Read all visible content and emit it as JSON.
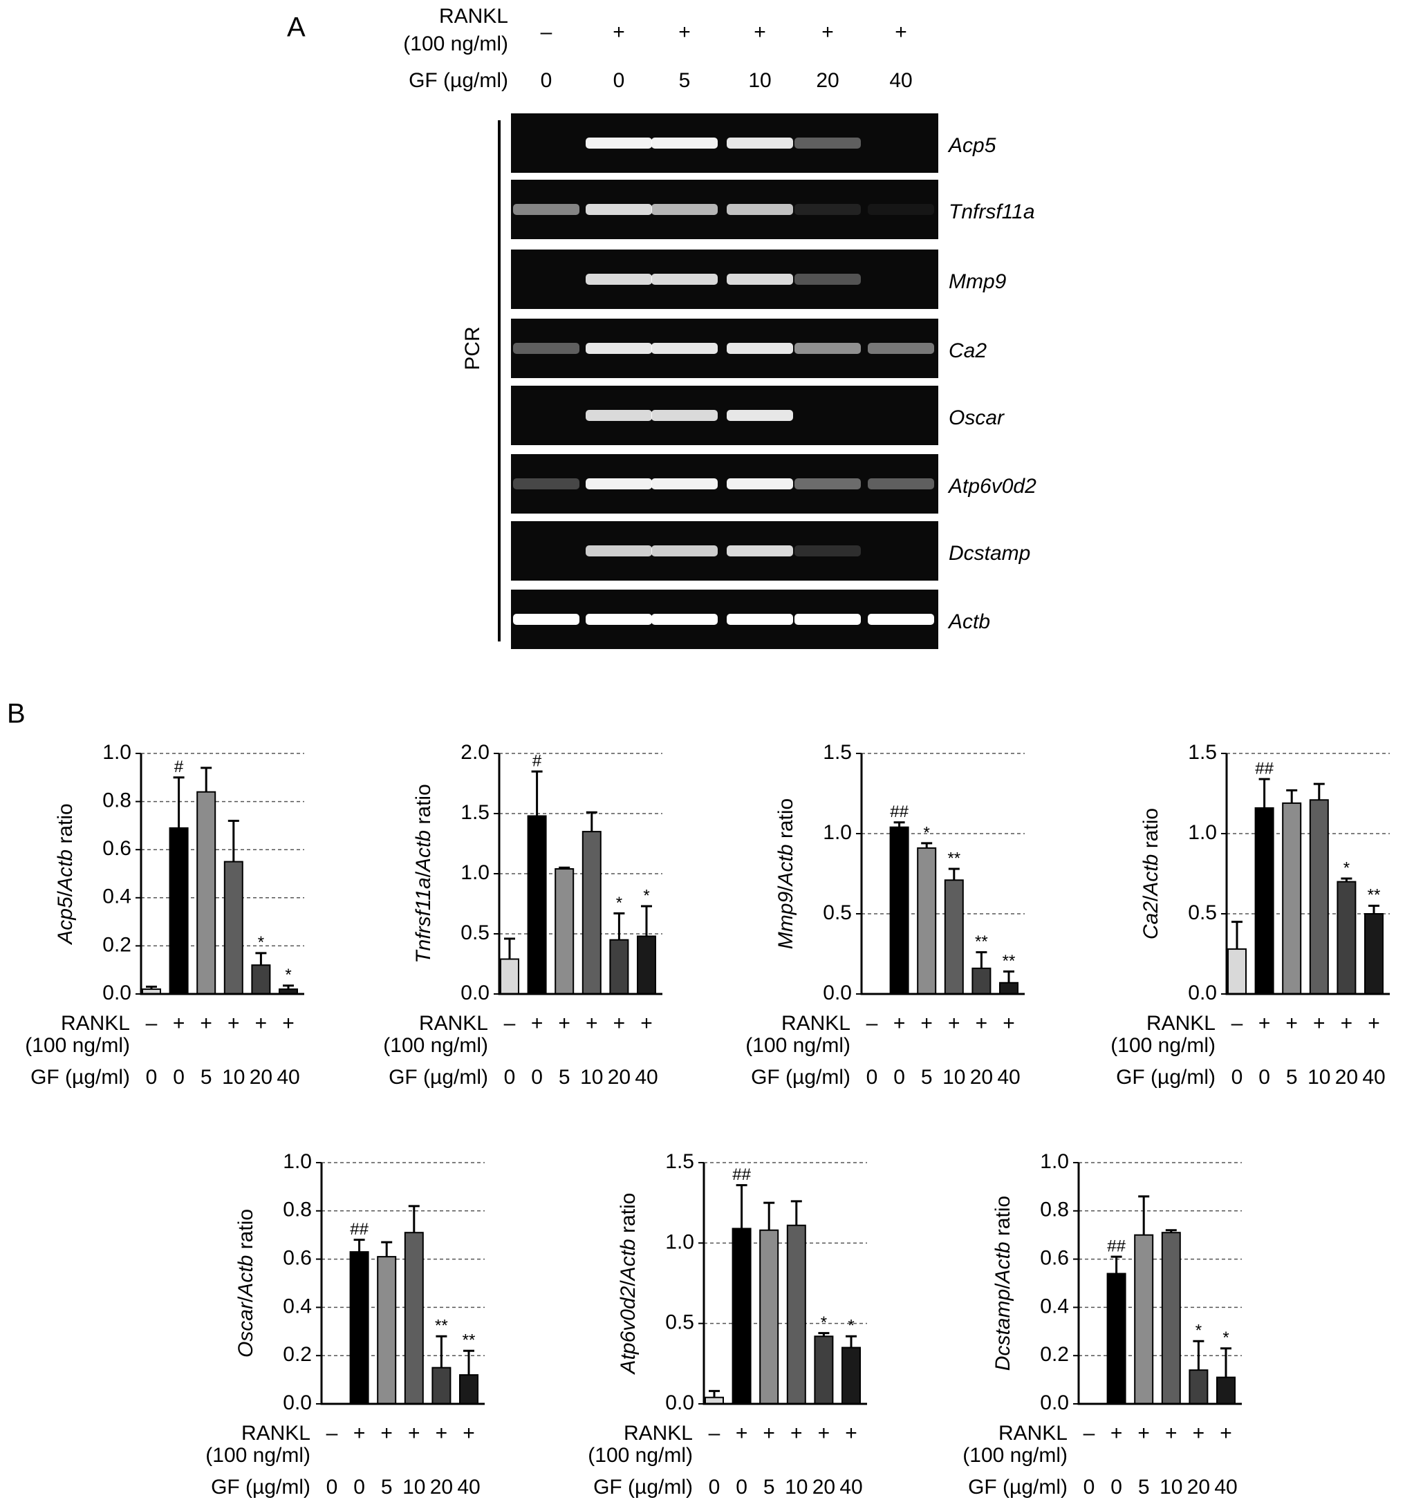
{
  "panel_a": {
    "label": "A",
    "rankl_label": "RANKL",
    "rankl_unit": "(100 ng/ml)",
    "rankl": [
      "–",
      "+",
      "+",
      "+",
      "+",
      "+"
    ],
    "gf_label": "GF (µg/ml)",
    "gf": [
      "0",
      "0",
      "5",
      "10",
      "20",
      "40"
    ],
    "method": "PCR",
    "genes": [
      "Acp5",
      "Tnfrsf11a",
      "Mmp9",
      "Ca2",
      "Oscar",
      "Atp6v0d2",
      "Dcstamp",
      "Actb"
    ]
  },
  "panel_b": {
    "label": "B"
  },
  "chart_data": [
    {
      "type": "bar",
      "ylabel": [
        {
          "text": "Acp5",
          "italic": true
        },
        {
          "text": "/",
          "italic": false
        },
        {
          "text": "Actb",
          "italic": true
        },
        {
          "text": " ratio",
          "italic": false
        }
      ],
      "row_labels": [
        "RANKL",
        "(100 ng/ml)",
        "GF (µg/ml)"
      ],
      "rankl": [
        "–",
        "+",
        "+",
        "+",
        "+",
        "+"
      ],
      "categories": [
        "0",
        "0",
        "5",
        "10",
        "20",
        "40"
      ],
      "values": [
        0.02,
        0.69,
        0.84,
        0.55,
        0.12,
        0.02
      ],
      "errors": [
        0.01,
        0.21,
        0.1,
        0.17,
        0.05,
        0.015
      ],
      "annotations": [
        null,
        "#",
        null,
        null,
        "*",
        "*"
      ],
      "colors": [
        "#d9d9d9",
        "#000000",
        "#8c8c8c",
        "#5e5e5e",
        "#404040",
        "#1a1a1a"
      ],
      "ylim": [
        0,
        1
      ],
      "yticks": [
        {
          "value": 0,
          "label": "0.0"
        },
        0.2,
        0.4,
        0.6,
        0.8,
        {
          "value": 1,
          "label": "1.0"
        }
      ],
      "grid": true
    },
    {
      "type": "bar",
      "ylabel": [
        {
          "text": "Tnfrsf11a",
          "italic": true
        },
        {
          "text": "/",
          "italic": false
        },
        {
          "text": "Actb",
          "italic": true
        },
        {
          "text": " ratio",
          "italic": false
        }
      ],
      "row_labels": [
        "RANKL",
        "(100 ng/ml)",
        "GF (µg/ml)"
      ],
      "rankl": [
        "–",
        "+",
        "+",
        "+",
        "+",
        "+"
      ],
      "categories": [
        "0",
        "0",
        "5",
        "10",
        "20",
        "40"
      ],
      "values": [
        0.29,
        1.48,
        1.04,
        1.35,
        0.45,
        0.48
      ],
      "errors": [
        0.17,
        0.37,
        0.01,
        0.16,
        0.22,
        0.25
      ],
      "annotations": [
        null,
        "#",
        null,
        null,
        "*",
        "*"
      ],
      "colors": [
        "#d9d9d9",
        "#000000",
        "#8c8c8c",
        "#5e5e5e",
        "#404040",
        "#1a1a1a"
      ],
      "ylim": [
        0,
        2
      ],
      "yticks": [
        {
          "value": 0,
          "label": "0.0"
        },
        0.5,
        {
          "value": 1,
          "label": "1.0"
        },
        1.5,
        {
          "value": 2,
          "label": "2.0"
        }
      ],
      "grid": true
    },
    {
      "type": "bar",
      "ylabel": [
        {
          "text": "Mmp9",
          "italic": true
        },
        {
          "text": "/",
          "italic": false
        },
        {
          "text": "Actb",
          "italic": true
        },
        {
          "text": " ratio",
          "italic": false
        }
      ],
      "row_labels": [
        "RANKL",
        "(100 ng/ml)",
        "GF (µg/ml)"
      ],
      "rankl": [
        "–",
        "+",
        "+",
        "+",
        "+",
        "+"
      ],
      "categories": [
        "0",
        "0",
        "5",
        "10",
        "20",
        "40"
      ],
      "values": [
        0,
        1.04,
        0.91,
        0.71,
        0.16,
        0.07
      ],
      "errors": [
        0,
        0.03,
        0.03,
        0.07,
        0.1,
        0.07
      ],
      "annotations": [
        null,
        "##",
        "*",
        "**",
        "**",
        "**"
      ],
      "colors": [
        "#d9d9d9",
        "#000000",
        "#8c8c8c",
        "#5e5e5e",
        "#404040",
        "#1a1a1a"
      ],
      "ylim": [
        0,
        1.5
      ],
      "yticks": [
        {
          "value": 0,
          "label": "0.0"
        },
        0.5,
        {
          "value": 1,
          "label": "1.0"
        },
        1.5
      ],
      "grid": true
    },
    {
      "type": "bar",
      "ylabel": [
        {
          "text": "Ca2",
          "italic": true
        },
        {
          "text": "/",
          "italic": false
        },
        {
          "text": "Actb",
          "italic": true
        },
        {
          "text": " ratio",
          "italic": false
        }
      ],
      "row_labels": [
        "RANKL",
        "(100 ng/ml)",
        "GF (µg/ml)"
      ],
      "rankl": [
        "–",
        "+",
        "+",
        "+",
        "+",
        "+"
      ],
      "categories": [
        "0",
        "0",
        "5",
        "10",
        "20",
        "40"
      ],
      "values": [
        0.28,
        1.16,
        1.19,
        1.21,
        0.7,
        0.5
      ],
      "errors": [
        0.17,
        0.18,
        0.08,
        0.1,
        0.02,
        0.05
      ],
      "annotations": [
        null,
        "##",
        null,
        null,
        "*",
        "**"
      ],
      "colors": [
        "#d9d9d9",
        "#000000",
        "#8c8c8c",
        "#5e5e5e",
        "#404040",
        "#1a1a1a"
      ],
      "ylim": [
        0,
        1.5
      ],
      "yticks": [
        {
          "value": 0,
          "label": "0.0"
        },
        0.5,
        {
          "value": 1,
          "label": "1.0"
        },
        1.5
      ],
      "grid": true
    },
    {
      "type": "bar",
      "ylabel": [
        {
          "text": "Oscar",
          "italic": true
        },
        {
          "text": "/",
          "italic": false
        },
        {
          "text": "Actb",
          "italic": true
        },
        {
          "text": " ratio",
          "italic": false
        }
      ],
      "row_labels": [
        "RANKL",
        "(100 ng/ml)",
        "GF (µg/ml)"
      ],
      "rankl": [
        "–",
        "+",
        "+",
        "+",
        "+",
        "+"
      ],
      "categories": [
        "0",
        "0",
        "5",
        "10",
        "20",
        "40"
      ],
      "values": [
        0,
        0.63,
        0.61,
        0.71,
        0.15,
        0.12
      ],
      "errors": [
        0,
        0.05,
        0.06,
        0.11,
        0.13,
        0.1
      ],
      "annotations": [
        null,
        "##",
        null,
        null,
        "**",
        "**"
      ],
      "colors": [
        "#d9d9d9",
        "#000000",
        "#8c8c8c",
        "#5e5e5e",
        "#404040",
        "#1a1a1a"
      ],
      "ylim": [
        0,
        1
      ],
      "yticks": [
        {
          "value": 0,
          "label": "0.0"
        },
        0.2,
        0.4,
        0.6,
        0.8,
        {
          "value": 1,
          "label": "1.0"
        }
      ],
      "grid": true
    },
    {
      "type": "bar",
      "ylabel": [
        {
          "text": "Atp6v0d2",
          "italic": true
        },
        {
          "text": "/",
          "italic": false
        },
        {
          "text": "Actb",
          "italic": true
        },
        {
          "text": " ratio",
          "italic": false
        }
      ],
      "row_labels": [
        "RANKL",
        "(100 ng/ml)",
        "GF (µg/ml)"
      ],
      "rankl": [
        "–",
        "+",
        "+",
        "+",
        "+",
        "+"
      ],
      "categories": [
        "0",
        "0",
        "5",
        "10",
        "20",
        "40"
      ],
      "values": [
        0.04,
        1.09,
        1.08,
        1.11,
        0.42,
        0.35
      ],
      "errors": [
        0.04,
        0.27,
        0.17,
        0.15,
        0.02,
        0.07
      ],
      "annotations": [
        null,
        "##",
        null,
        null,
        "*",
        "*"
      ],
      "colors": [
        "#d9d9d9",
        "#000000",
        "#8c8c8c",
        "#5e5e5e",
        "#404040",
        "#1a1a1a"
      ],
      "ylim": [
        0,
        1.5
      ],
      "yticks": [
        {
          "value": 0,
          "label": "0.0"
        },
        0.5,
        {
          "value": 1,
          "label": "1.0"
        },
        1.5
      ],
      "grid": true
    },
    {
      "type": "bar",
      "ylabel": [
        {
          "text": "Dcstamp",
          "italic": true
        },
        {
          "text": "/",
          "italic": false
        },
        {
          "text": "Actb",
          "italic": true
        },
        {
          "text": " ratio",
          "italic": false
        }
      ],
      "row_labels": [
        "RANKL",
        "(100 ng/ml)",
        "GF (µg/ml)"
      ],
      "rankl": [
        "–",
        "+",
        "+",
        "+",
        "+",
        "+"
      ],
      "categories": [
        "0",
        "0",
        "5",
        "10",
        "20",
        "40"
      ],
      "values": [
        0,
        0.54,
        0.7,
        0.71,
        0.14,
        0.11
      ],
      "errors": [
        0,
        0.07,
        0.16,
        0.01,
        0.12,
        0.12
      ],
      "annotations": [
        null,
        "##",
        null,
        null,
        "*",
        "*"
      ],
      "colors": [
        "#d9d9d9",
        "#000000",
        "#8c8c8c",
        "#5e5e5e",
        "#404040",
        "#1a1a1a"
      ],
      "ylim": [
        0,
        1
      ],
      "yticks": [
        {
          "value": 0,
          "label": "0.0"
        },
        0.2,
        0.4,
        0.6,
        0.8,
        {
          "value": 1,
          "label": "1.0"
        }
      ],
      "grid": true
    }
  ]
}
